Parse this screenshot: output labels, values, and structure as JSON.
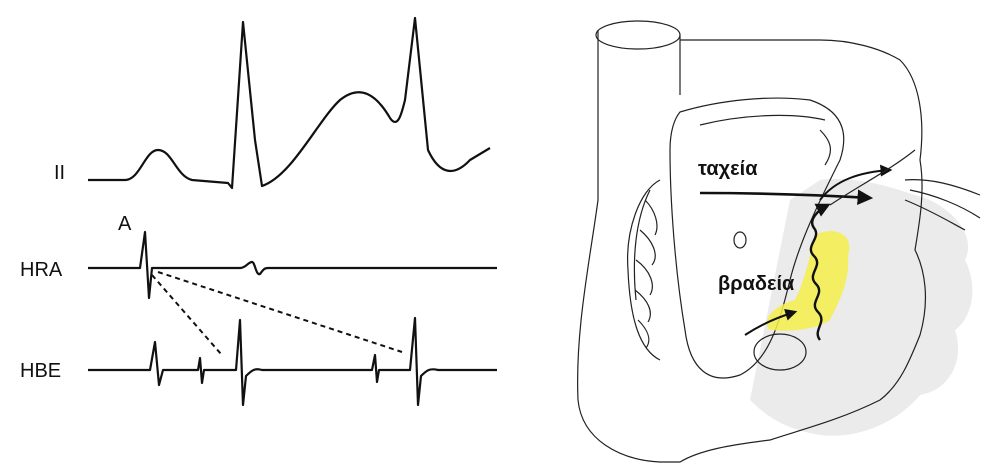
{
  "ecg": {
    "leads": [
      "II",
      "HRA",
      "HBE"
    ],
    "marker": "A"
  },
  "heart": {
    "labels": [
      "ταχεία",
      "βραδεία"
    ]
  }
}
